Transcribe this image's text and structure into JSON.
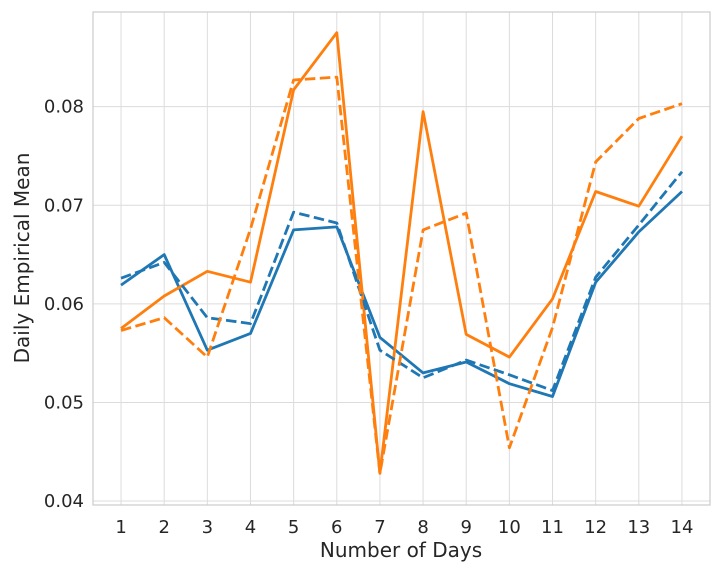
{
  "chart_data": {
    "type": "line",
    "title": "",
    "xlabel": "Number of Days",
    "ylabel": "Daily Empirical Mean",
    "x": [
      1,
      2,
      3,
      4,
      5,
      6,
      7,
      8,
      9,
      10,
      11,
      12,
      13,
      14
    ],
    "xtick_labels": [
      "1",
      "2",
      "3",
      "4",
      "5",
      "6",
      "7",
      "8",
      "9",
      "10",
      "11",
      "12",
      "13",
      "14"
    ],
    "ytick_values": [
      0.04,
      0.05,
      0.06,
      0.07,
      0.08
    ],
    "ytick_labels": [
      "0.04",
      "0.05",
      "0.06",
      "0.07",
      "0.08"
    ],
    "xlim": [
      0.35,
      14.65
    ],
    "ylim": [
      0.0396,
      0.0896
    ],
    "grid": true,
    "legend": "none",
    "series": [
      {
        "name": "blue-solid",
        "color": "#1f77b4",
        "linestyle": "solid",
        "values": [
          0.0619,
          0.065,
          0.0553,
          0.057,
          0.0675,
          0.0678,
          0.0566,
          0.053,
          0.0541,
          0.0519,
          0.0506,
          0.0622,
          0.0673,
          0.0714
        ]
      },
      {
        "name": "orange-solid",
        "color": "#ff7f0e",
        "linestyle": "solid",
        "values": [
          0.0575,
          0.0608,
          0.0633,
          0.0622,
          0.0817,
          0.0875,
          0.0428,
          0.0795,
          0.0569,
          0.0546,
          0.0605,
          0.0714,
          0.0699,
          0.077
        ]
      },
      {
        "name": "blue-dashed",
        "color": "#1f77b4",
        "linestyle": "dashed",
        "values": [
          0.0626,
          0.0642,
          0.0586,
          0.058,
          0.0693,
          0.0682,
          0.0553,
          0.0525,
          0.0543,
          0.0528,
          0.0512,
          0.0627,
          0.068,
          0.0734
        ]
      },
      {
        "name": "orange-dashed",
        "color": "#ff7f0e",
        "linestyle": "dashed",
        "values": [
          0.0573,
          0.0586,
          0.0546,
          0.0676,
          0.0827,
          0.083,
          0.0428,
          0.0675,
          0.0692,
          0.0454,
          0.0576,
          0.0744,
          0.0788,
          0.0803
        ]
      }
    ],
    "style": {
      "grid_color": "#dcdcdc",
      "frame_color": "#cccccc",
      "text_color": "#262626",
      "background": "#ffffff"
    }
  }
}
